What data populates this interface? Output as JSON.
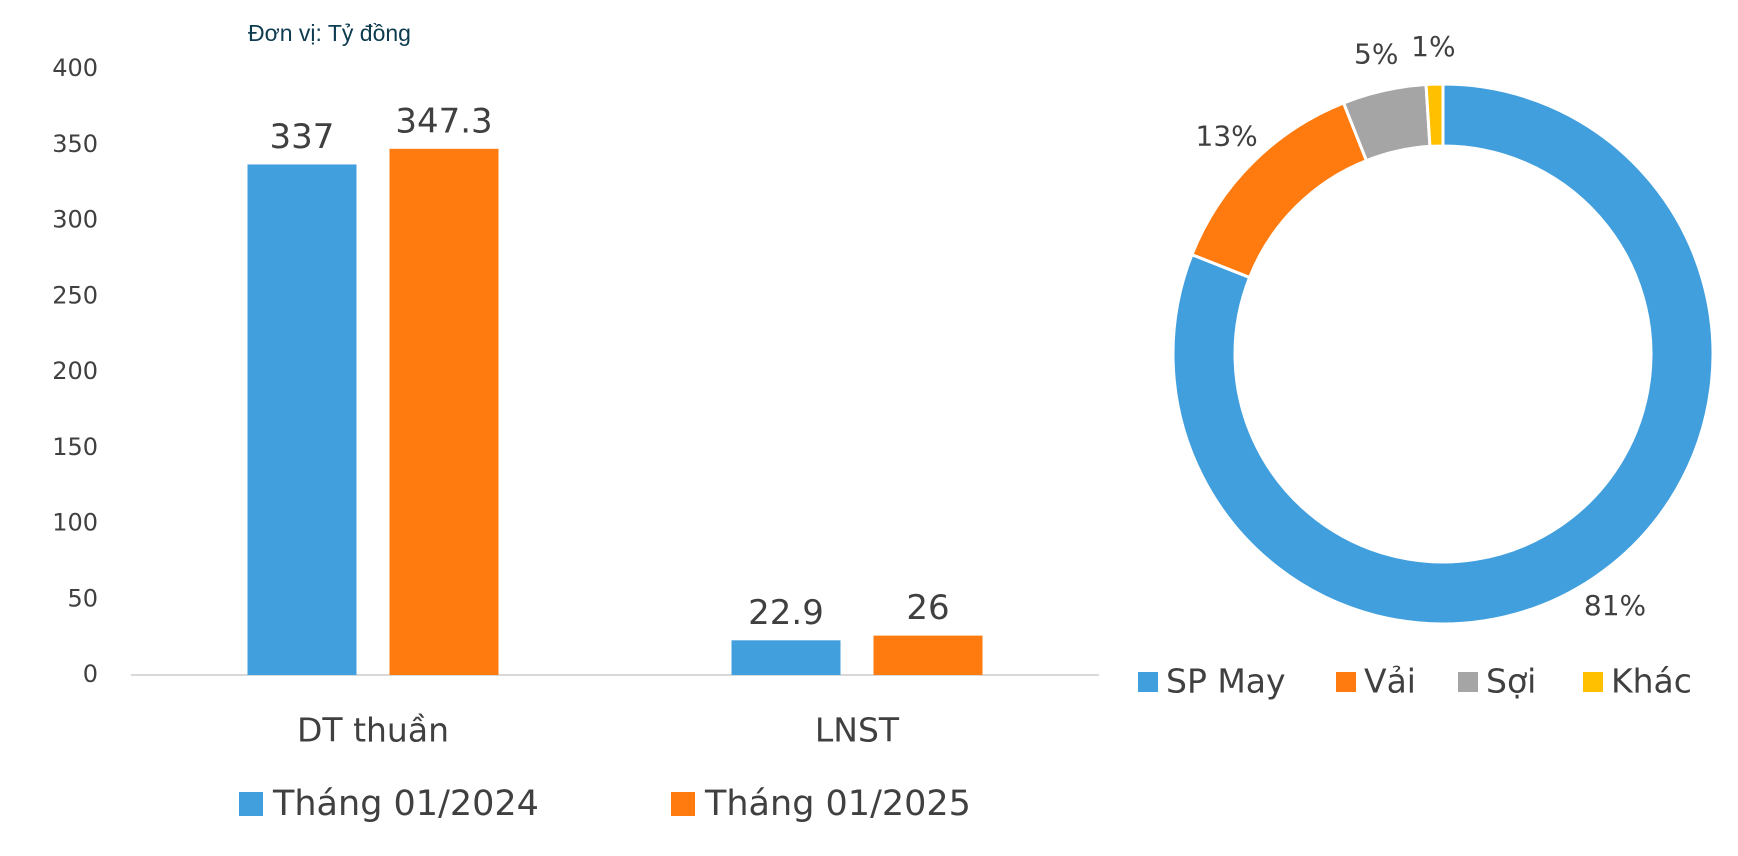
{
  "chart_data": [
    {
      "type": "bar",
      "subtitle": "Đơn vị: Tỷ đồng",
      "categories": [
        "DT thuần",
        "LNST"
      ],
      "series": [
        {
          "name": "Tháng 01/2024",
          "color": "#419fde",
          "values": [
            337,
            22.9
          ]
        },
        {
          "name": "Tháng 01/2025",
          "color": "#ff7b0f",
          "values": [
            347.3,
            26
          ]
        }
      ],
      "ylim": [
        0,
        400
      ],
      "yticks": [
        0,
        50,
        100,
        150,
        200,
        250,
        300,
        350,
        400
      ],
      "grid": false
    },
    {
      "type": "donut",
      "categories": [
        "SP May",
        "Vải",
        "Sợi",
        "Khác"
      ],
      "values": [
        81,
        13,
        5,
        1
      ],
      "value_labels": [
        "81%",
        "13%",
        "5%",
        "1%"
      ],
      "colors": [
        "#419fde",
        "#ff7b0f",
        "#a5a5a5",
        "#ffc000"
      ]
    }
  ]
}
